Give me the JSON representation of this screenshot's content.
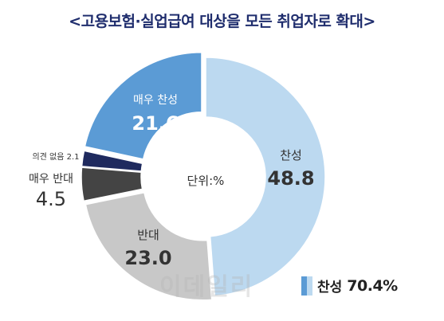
{
  "header": {
    "title": "<고용보험·실업급여 대상을 모든 취업자로 확대>"
  },
  "colors": {
    "strongly_agree": "#5b9bd5",
    "agree": "#bcd9f0",
    "disagree": "#c8c8c8",
    "strongly_disagree": "#444444",
    "no_opinion": "#1f2a5e"
  },
  "chart_data": {
    "type": "pie",
    "variant": "donut",
    "center_label": "단위:%",
    "slices": [
      {
        "label": "찬성",
        "value": 48.8,
        "display": "48.8"
      },
      {
        "label": "반대",
        "value": 23.0,
        "display": "23.0"
      },
      {
        "label": "매우 반대",
        "value": 4.5,
        "display": "4.5"
      },
      {
        "label": "의견 없음",
        "value": 2.1,
        "display": "2.1"
      },
      {
        "label": "매우 찬성",
        "value": 21.6,
        "display": "21.6"
      }
    ],
    "legend": {
      "label": "찬성",
      "value": "70.4%"
    }
  },
  "watermark": "이데일리"
}
